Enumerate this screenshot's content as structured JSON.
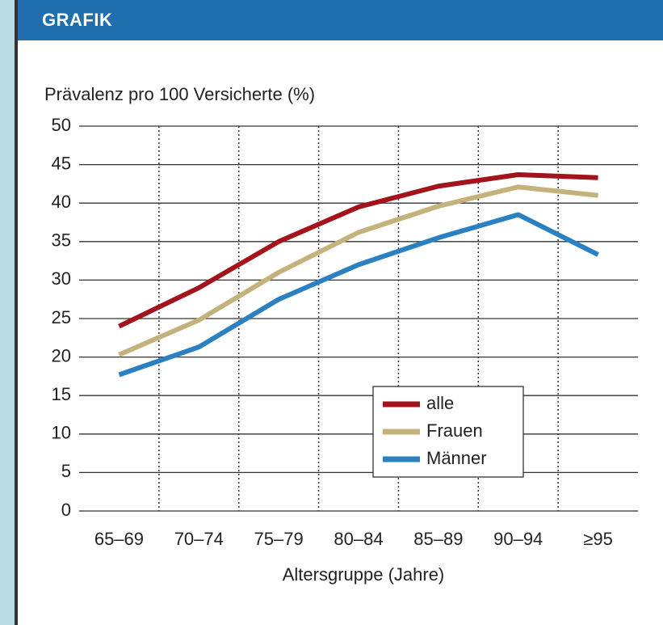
{
  "header": {
    "title": "GRAFIK"
  },
  "chart_data": {
    "type": "line",
    "title": "Prävalenz pro 100 Versicherte (%)",
    "x_label": "Altersgruppe (Jahre)",
    "categories": [
      "65–69",
      "70–74",
      "75–79",
      "80–84",
      "85–89",
      "90–94",
      "≥95"
    ],
    "series": [
      {
        "name": "alle",
        "color": "#a3131c",
        "values": [
          24,
          29,
          35,
          39.5,
          42.2,
          43.7,
          43.3
        ]
      },
      {
        "name": "Frauen",
        "color": "#c3b27c",
        "values": [
          20.3,
          24.8,
          31,
          36.2,
          39.6,
          42.1,
          41
        ]
      },
      {
        "name": "Männer",
        "color": "#2a80c1",
        "values": [
          17.7,
          21.3,
          27.5,
          32,
          35.5,
          38.5,
          33.3
        ]
      }
    ],
    "ylim": [
      0,
      50
    ],
    "yticks": [
      0,
      5,
      10,
      15,
      20,
      25,
      30,
      35,
      40,
      45,
      50
    ],
    "grid": true,
    "legend": "lower right"
  }
}
